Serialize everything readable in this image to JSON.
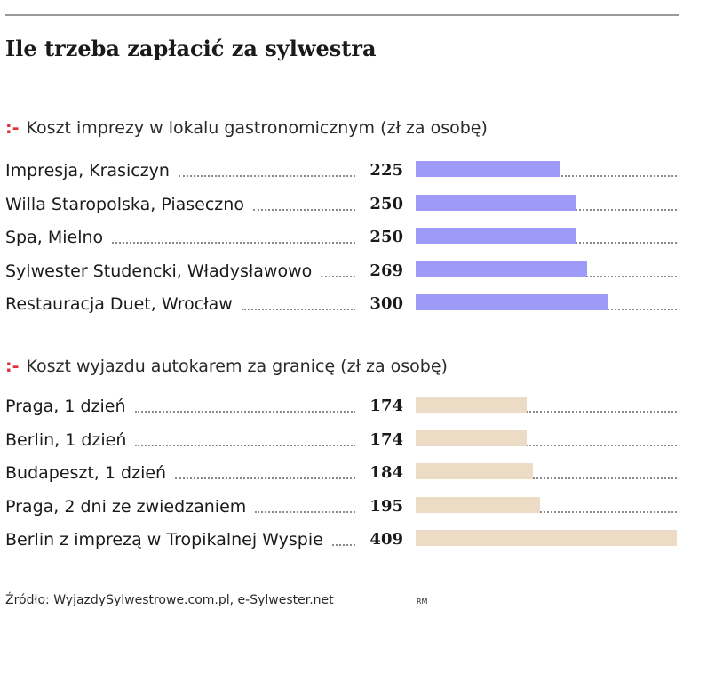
{
  "title": "Ile trzeba zapłacić za sylwestra",
  "source": "Źródło: WyjazdySylwestrowe.com.pl, e-Sylwester.net",
  "author_initials": "RM",
  "colors": {
    "series1_bar": "#9d9bf7",
    "series2_bar": "#ecdcc6",
    "marker": "#e0303a"
  },
  "chart_data": [
    {
      "type": "bar",
      "orientation": "horizontal",
      "title": "Koszt imprezy w lokalu gastronomicznym (zł za osobę)",
      "marker": ":-",
      "categories": [
        "Impresja, Krasiczyn",
        "Willa Staropolska, Piaseczno",
        "Spa, Mielno",
        "Sylwester Studencki, Władysławowo",
        "Restauracja Duet, Wrocław"
      ],
      "values": [
        225,
        250,
        250,
        269,
        300
      ],
      "xlim": [
        0,
        409
      ],
      "color": "#9d9bf7",
      "grid": false
    },
    {
      "type": "bar",
      "orientation": "horizontal",
      "title": "Koszt wyjazdu autokarem za granicę (zł za osobę)",
      "marker": ":-",
      "categories": [
        "Praga, 1 dzień",
        "Berlin, 1 dzień",
        "Budapeszt, 1 dzień",
        "Praga, 2 dni ze zwiedzaniem",
        "Berlin z imprezą w Tropikalnej Wyspie"
      ],
      "values": [
        174,
        174,
        184,
        195,
        409
      ],
      "xlim": [
        0,
        409
      ],
      "color": "#ecdcc6",
      "grid": false
    }
  ]
}
